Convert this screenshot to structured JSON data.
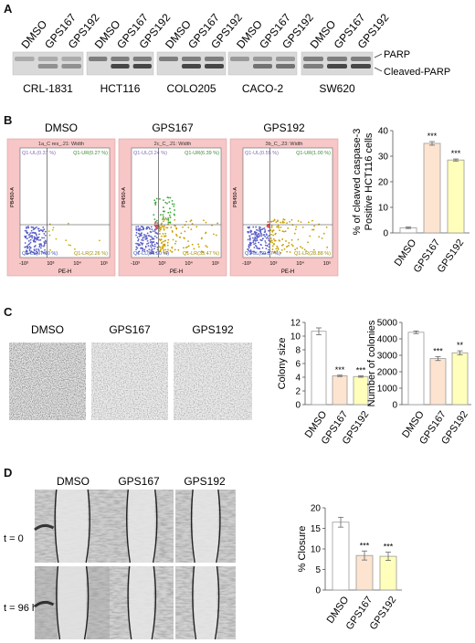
{
  "panel_a": {
    "letter": "A",
    "lanes": [
      {
        "label": "CRL-1831",
        "lanes": [
          "DMSO",
          "GPS167",
          "GPS192"
        ]
      },
      {
        "label": "HCT116",
        "lanes": [
          "DMSO",
          "GPS167",
          "GPS192"
        ]
      },
      {
        "label": "COLO205",
        "lanes": [
          "DMSO",
          "GPS167",
          "GPS192"
        ]
      },
      {
        "label": "CACO-2",
        "lanes": [
          "DMSO",
          "GPS167",
          "GPS192"
        ]
      },
      {
        "label": "SW620",
        "lanes": [
          "DMSO",
          "GPS167",
          "GPS192"
        ]
      }
    ],
    "band_labels": [
      "PARP",
      "Cleaved-PARP"
    ]
  },
  "panel_b": {
    "letter": "B",
    "plots": [
      {
        "condition": "DMSO",
        "plot_title": "1a_C res_.21: Width",
        "ul": "Q1-UL(0.37 %)",
        "ur": "Q1-UR(0.27 %)",
        "ll": "Q1-LL(97.10 %)",
        "lr": "Q1-LR(2.26 %)"
      },
      {
        "condition": "GPS167",
        "plot_title": "2c_C_.21: Width",
        "ul": "Q1-UL(3.24 %)",
        "ur": "Q1-UR(6.39 %)",
        "ll": "Q1-LL(54.90 %)",
        "lr": "Q1-LR(35.47 %)"
      },
      {
        "condition": "GPS192",
        "plot_title": "3b_C_.23: Width",
        "ul": "Q1-UL(0.55 %)",
        "ur": "Q1-UR(1.00 %)",
        "ll": "Q1-LL(69.57 %)",
        "lr": "Q1-LR(28.88 %)"
      }
    ],
    "y_axis": "PB450-A",
    "x_axis": "PE-H",
    "x_ticks": [
      "-10³",
      "10³",
      "10⁴",
      "10⁵"
    ]
  },
  "panel_c": {
    "letter": "C",
    "image_labels": [
      "DMSO",
      "GPS167",
      "GPS192"
    ]
  },
  "panel_d": {
    "letter": "D",
    "image_labels": [
      "DMSO",
      "GPS167",
      "GPS192"
    ],
    "time_labels": [
      "t = 0",
      "t = 96 h"
    ]
  },
  "chart_data": [
    {
      "type": "bar",
      "panel": "B",
      "categories": [
        "DMSO",
        "GPS167",
        "GPS192"
      ],
      "values": [
        2,
        35,
        28.5
      ],
      "errors": [
        0.3,
        0.7,
        0.4
      ],
      "significance": [
        "",
        "***",
        "***"
      ],
      "ylabel": "% of cleaved caspase-3 Positive HCT116 cells",
      "ylabel_lines": [
        "% of cleaved caspase-3",
        "Positive HCT116 cells"
      ],
      "ylim": [
        0,
        40
      ],
      "yticks": [
        0,
        10,
        20,
        30,
        40
      ],
      "colors": [
        "#ffffff",
        "#fde4d0",
        "#ffffbb"
      ]
    },
    {
      "type": "bar",
      "panel": "C",
      "categories": [
        "DMSO",
        "GPS167",
        "GPS192"
      ],
      "values": [
        10.7,
        4.2,
        4.1
      ],
      "errors": [
        0.5,
        0.1,
        0.1
      ],
      "significance": [
        "",
        "***",
        "***"
      ],
      "ylabel": "Colony size",
      "ylim": [
        0,
        12
      ],
      "yticks": [
        0,
        2,
        4,
        6,
        8,
        10,
        12
      ],
      "colors": [
        "#ffffff",
        "#fde4d0",
        "#ffffbb"
      ]
    },
    {
      "type": "bar",
      "panel": "C",
      "categories": [
        "DMSO",
        "GPS167",
        "GPS192"
      ],
      "values": [
        4400,
        2800,
        3150
      ],
      "errors": [
        80,
        120,
        120
      ],
      "significance": [
        "",
        "***",
        "**"
      ],
      "ylabel": "Number of colonies",
      "ylim": [
        0,
        5000
      ],
      "yticks": [
        0,
        1000,
        2000,
        3000,
        4000,
        5000
      ],
      "colors": [
        "#ffffff",
        "#fde4d0",
        "#ffffbb"
      ]
    },
    {
      "type": "bar",
      "panel": "D",
      "categories": [
        "DMSO",
        "GPS167",
        "GPS192"
      ],
      "values": [
        16.5,
        8.4,
        8.2
      ],
      "errors": [
        1.2,
        1.1,
        1.0
      ],
      "significance": [
        "",
        "***",
        "***"
      ],
      "ylabel": "% Closure",
      "ylim": [
        0,
        20
      ],
      "yticks": [
        0,
        5,
        10,
        15,
        20
      ],
      "colors": [
        "#ffffff",
        "#fde4d0",
        "#ffffbb"
      ]
    }
  ]
}
